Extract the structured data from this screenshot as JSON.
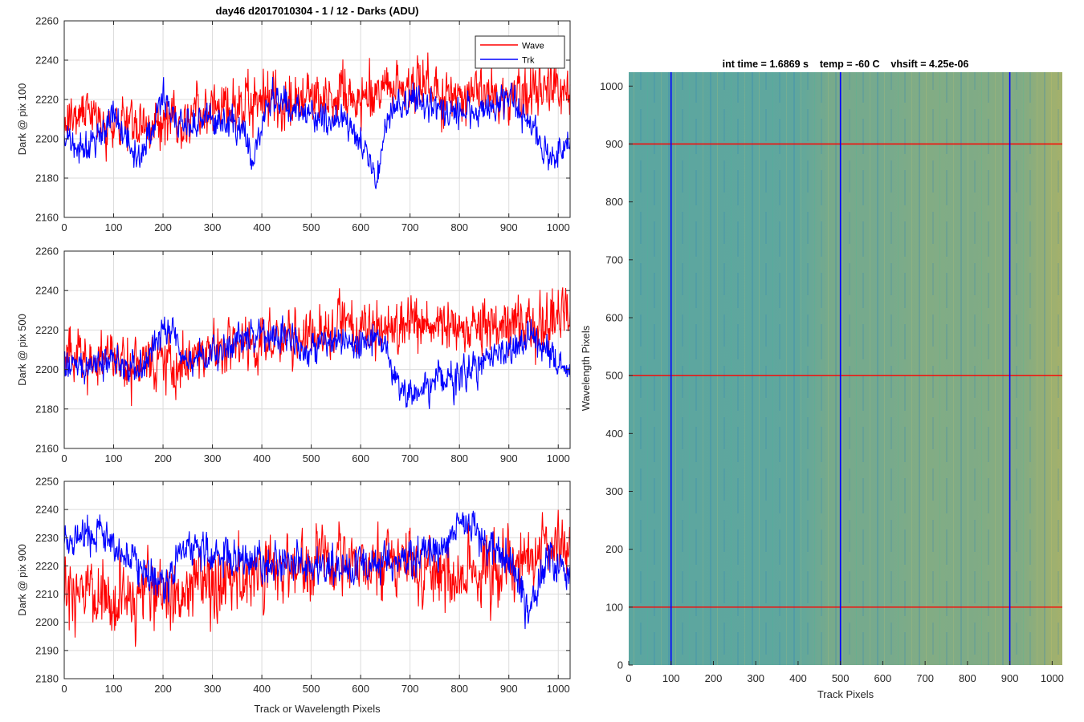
{
  "figure_title": "day46 d2017010304 - 1 / 12 - Darks (ADU)",
  "colors": {
    "wave": "#ff0000",
    "trk": "#0000ff",
    "grid": "#dcdcdc",
    "axis": "#262626"
  },
  "chart_data": [
    {
      "type": "line",
      "title": "day46 d2017010304 - 1 / 12 - Darks (ADU)",
      "xlabel": "",
      "ylabel": "Dark @ pix 100",
      "xlim": [
        0,
        1024
      ],
      "ylim": [
        2160,
        2260
      ],
      "xticks": [
        0,
        100,
        200,
        300,
        400,
        500,
        600,
        700,
        800,
        900,
        1000
      ],
      "yticks": [
        2160,
        2180,
        2200,
        2220,
        2240,
        2260
      ],
      "grid": true,
      "legend": {
        "location": "top-right",
        "entries": [
          "Wave",
          "Trk"
        ]
      },
      "series": [
        {
          "name": "Wave",
          "color": "#ff0000",
          "noise": 10,
          "x": [
            0,
            100,
            200,
            300,
            400,
            500,
            600,
            700,
            800,
            900,
            1024
          ],
          "values": [
            2207,
            2207,
            2206,
            2214,
            2218,
            2223,
            2220,
            2228,
            2222,
            2222,
            2228
          ]
        },
        {
          "name": "Trk",
          "color": "#0000ff",
          "noise": 6,
          "x": [
            0,
            40,
            100,
            150,
            200,
            230,
            300,
            360,
            380,
            420,
            480,
            520,
            560,
            610,
            630,
            660,
            700,
            800,
            880,
            900,
            950,
            980,
            1024
          ],
          "values": [
            2205,
            2192,
            2212,
            2188,
            2222,
            2205,
            2210,
            2205,
            2188,
            2222,
            2212,
            2210,
            2210,
            2198,
            2176,
            2216,
            2220,
            2213,
            2216,
            2222,
            2205,
            2190,
            2196
          ]
        }
      ]
    },
    {
      "type": "line",
      "xlabel": "",
      "ylabel": "Dark @ pix 500",
      "xlim": [
        0,
        1024
      ],
      "ylim": [
        2160,
        2260
      ],
      "xticks": [
        0,
        100,
        200,
        300,
        400,
        500,
        600,
        700,
        800,
        900,
        1000
      ],
      "yticks": [
        2160,
        2180,
        2200,
        2220,
        2240,
        2260
      ],
      "grid": true,
      "series": [
        {
          "name": "Wave",
          "color": "#ff0000",
          "noise": 10,
          "x": [
            0,
            100,
            200,
            300,
            400,
            500,
            600,
            700,
            800,
            900,
            1024
          ],
          "values": [
            2205,
            2205,
            2203,
            2211,
            2214,
            2218,
            2220,
            2222,
            2219,
            2221,
            2228
          ]
        },
        {
          "name": "Trk",
          "color": "#0000ff",
          "noise": 6,
          "x": [
            0,
            100,
            150,
            210,
            250,
            300,
            350,
            420,
            480,
            560,
            640,
            700,
            760,
            800,
            880,
            950,
            1000,
            1024
          ],
          "values": [
            2200,
            2206,
            2200,
            2222,
            2203,
            2208,
            2213,
            2220,
            2210,
            2215,
            2212,
            2185,
            2196,
            2196,
            2210,
            2216,
            2203,
            2201
          ]
        }
      ]
    },
    {
      "type": "line",
      "xlabel": "Track or Wavelength Pixels",
      "ylabel": "Dark @ pix 900",
      "xlim": [
        0,
        1024
      ],
      "ylim": [
        2180,
        2250
      ],
      "xticks": [
        0,
        100,
        200,
        300,
        400,
        500,
        600,
        700,
        800,
        900,
        1000
      ],
      "yticks": [
        2180,
        2190,
        2200,
        2210,
        2220,
        2230,
        2240,
        2250
      ],
      "grid": true,
      "series": [
        {
          "name": "Wave",
          "color": "#ff0000",
          "noise": 9,
          "x": [
            0,
            100,
            200,
            300,
            400,
            500,
            600,
            700,
            800,
            900,
            1024
          ],
          "values": [
            2208,
            2210,
            2211,
            2214,
            2218,
            2220,
            2220,
            2222,
            2216,
            2220,
            2230
          ]
        },
        {
          "name": "Trk",
          "color": "#0000ff",
          "noise": 5,
          "x": [
            0,
            80,
            150,
            200,
            250,
            300,
            400,
            500,
            600,
            700,
            760,
            800,
            860,
            900,
            940,
            980,
            1024
          ],
          "values": [
            2228,
            2232,
            2218,
            2214,
            2228,
            2224,
            2221,
            2221,
            2220,
            2222,
            2225,
            2237,
            2228,
            2222,
            2205,
            2222,
            2218
          ]
        }
      ]
    },
    {
      "type": "heatmap",
      "title": "int time = 1.6869 s    temp = -60 C    vhsift = 4.25e-06",
      "xlabel": "Track Pixels",
      "ylabel": "Wavelength Pixels",
      "xlim": [
        0,
        1024
      ],
      "ylim": [
        0,
        1024
      ],
      "xticks": [
        0,
        100,
        200,
        300,
        400,
        500,
        600,
        700,
        800,
        900,
        1000
      ],
      "yticks": [
        0,
        100,
        200,
        300,
        400,
        500,
        600,
        700,
        800,
        900,
        1000
      ],
      "colormap": "parula",
      "color_low": "#1f9dcc",
      "color_high": "#cbb64f",
      "gradient_x": [
        0,
        400,
        480,
        600,
        700,
        800,
        880,
        920,
        1024
      ],
      "gradient_level": [
        0.35,
        0.38,
        0.52,
        0.5,
        0.58,
        0.55,
        0.6,
        0.56,
        0.78
      ],
      "track_markers": [
        100,
        500,
        900
      ],
      "wavelength_markers": [
        100,
        500,
        900
      ]
    }
  ]
}
